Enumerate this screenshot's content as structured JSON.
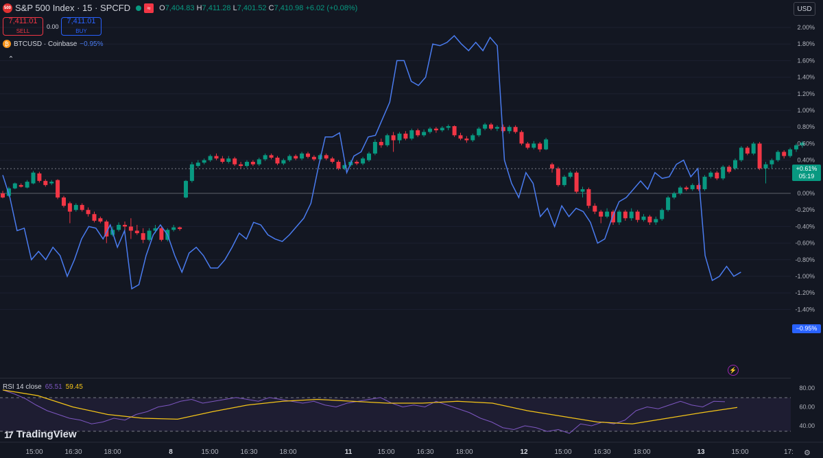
{
  "header": {
    "badge": "500",
    "title": "S&P 500 Index · 15 · SPCFD",
    "icon_glyph": "≈",
    "ohlc": {
      "o": "7,404.83",
      "h": "7,411.28",
      "l": "7,401.52",
      "c": "7,410.98",
      "change": "+6.02 (+0.08%)"
    }
  },
  "trade": {
    "sell_price": "7,411.01",
    "sell_label": "SELL",
    "spread": "0.00",
    "buy_price": "7,411.01",
    "buy_label": "BUY"
  },
  "compare": {
    "icon": "₿",
    "symbol": "BTCUSD · Coinbase",
    "change": "−0.95%"
  },
  "currency_button": "USD",
  "price_tags": {
    "sp_change": "+0.61%",
    "sp_countdown": "05:19",
    "btc_change": "−0.95%"
  },
  "rsi": {
    "label": "RSI 14 close",
    "rsi_value": "65.51",
    "ma_value": "59.45"
  },
  "brand": "TradingView",
  "colors": {
    "up": "#089981",
    "down": "#f23645",
    "btc_line": "#4a7cf0",
    "rsi_line": "#7e57c2",
    "rsi_ma": "#f5c518"
  },
  "chart_data": {
    "type": "line",
    "y_axis": {
      "ticks": [
        "2.00%",
        "1.80%",
        "1.60%",
        "1.40%",
        "1.20%",
        "1.00%",
        "0.80%",
        "0.60%",
        "0.40%",
        "0.20%",
        "0.00%",
        "-0.20%",
        "-0.40%",
        "-0.60%",
        "-0.80%",
        "-1.00%",
        "-1.20%",
        "-1.40%"
      ],
      "range": [
        -1.45,
        2.1
      ],
      "unit": "%"
    },
    "x_axis": {
      "ticks": [
        "15:00",
        "16:30",
        "18:00",
        "8",
        "15:00",
        "16:30",
        "18:00",
        "11",
        "15:00",
        "16:30",
        "18:00",
        "12",
        "15:00",
        "16:30",
        "18:00",
        "13",
        "15:00",
        "17:"
      ]
    },
    "rsi_axis": {
      "ticks": [
        "80.00",
        "60.00",
        "40.00"
      ],
      "range": [
        30,
        85
      ],
      "band": [
        30,
        70
      ]
    },
    "sp500_candles": [
      [
        0.0,
        -0.05,
        0.03,
        -0.06
      ],
      [
        -0.03,
        0.06,
        0.08,
        -0.04
      ],
      [
        0.06,
        0.12,
        0.13,
        0.05
      ],
      [
        0.1,
        0.08,
        0.12,
        0.07
      ],
      [
        0.07,
        0.14,
        0.16,
        0.06
      ],
      [
        0.12,
        0.25,
        0.27,
        0.11
      ],
      [
        0.24,
        0.15,
        0.26,
        0.13
      ],
      [
        0.15,
        0.1,
        0.17,
        0.08
      ],
      [
        0.12,
        0.14,
        0.16,
        0.1
      ],
      [
        0.16,
        -0.05,
        0.17,
        -0.07
      ],
      [
        -0.05,
        -0.15,
        -0.03,
        -0.17
      ],
      [
        -0.12,
        -0.22,
        -0.1,
        -0.36
      ],
      [
        -0.2,
        -0.14,
        -0.12,
        -0.22
      ],
      [
        -0.14,
        -0.2,
        -0.12,
        -0.22
      ],
      [
        -0.2,
        -0.25,
        -0.17,
        -0.28
      ],
      [
        -0.25,
        -0.33,
        -0.22,
        -0.35
      ],
      [
        -0.3,
        -0.34,
        -0.28,
        -0.36
      ],
      [
        -0.34,
        -0.52,
        -0.32,
        -0.6
      ],
      [
        -0.5,
        -0.44,
        -0.4,
        -0.52
      ],
      [
        -0.44,
        -0.38,
        -0.35,
        -0.46
      ],
      [
        -0.38,
        -0.4,
        -0.34,
        -0.45
      ],
      [
        -0.4,
        -0.45,
        -0.3,
        -0.55
      ],
      [
        -0.45,
        -0.48,
        -0.38,
        -0.5
      ],
      [
        -0.48,
        -0.56,
        -0.42,
        -0.6
      ],
      [
        -0.56,
        -0.45,
        -0.42,
        -0.58
      ],
      [
        -0.45,
        -0.42,
        -0.38,
        -0.48
      ],
      [
        -0.42,
        -0.56,
        -0.4,
        -0.58
      ],
      [
        -0.56,
        -0.44,
        -0.42,
        -0.58
      ],
      [
        -0.44,
        -0.41,
        -0.38,
        -0.46
      ],
      [
        -0.41,
        -0.43,
        -0.4,
        -0.45
      ],
      [
        -0.05,
        0.15,
        0.16,
        -0.06
      ],
      [
        0.15,
        0.35,
        0.38,
        0.13
      ],
      [
        0.33,
        0.37,
        0.4,
        0.31
      ],
      [
        0.37,
        0.4,
        0.42,
        0.35
      ],
      [
        0.4,
        0.45,
        0.47,
        0.38
      ],
      [
        0.45,
        0.42,
        0.48,
        0.4
      ],
      [
        0.42,
        0.38,
        0.45,
        0.36
      ],
      [
        0.38,
        0.42,
        0.45,
        0.36
      ],
      [
        0.42,
        0.35,
        0.44,
        0.33
      ],
      [
        0.35,
        0.33,
        0.38,
        0.3
      ],
      [
        0.33,
        0.38,
        0.4,
        0.31
      ],
      [
        0.38,
        0.35,
        0.4,
        0.33
      ],
      [
        0.35,
        0.41,
        0.43,
        0.33
      ],
      [
        0.41,
        0.46,
        0.48,
        0.39
      ],
      [
        0.46,
        0.43,
        0.48,
        0.41
      ],
      [
        0.43,
        0.36,
        0.45,
        0.34
      ],
      [
        0.36,
        0.4,
        0.42,
        0.34
      ],
      [
        0.4,
        0.45,
        0.47,
        0.38
      ],
      [
        0.45,
        0.42,
        0.47,
        0.4
      ],
      [
        0.42,
        0.48,
        0.5,
        0.4
      ],
      [
        0.48,
        0.44,
        0.5,
        0.42
      ],
      [
        0.44,
        0.41,
        0.46,
        0.39
      ],
      [
        0.41,
        0.46,
        0.48,
        0.39
      ],
      [
        0.46,
        0.42,
        0.48,
        0.4
      ],
      [
        0.42,
        0.38,
        0.44,
        0.36
      ],
      [
        0.38,
        0.3,
        0.4,
        0.28
      ],
      [
        0.3,
        0.34,
        0.36,
        0.28
      ],
      [
        0.34,
        0.38,
        0.4,
        0.32
      ],
      [
        0.38,
        0.36,
        0.4,
        0.34
      ],
      [
        0.36,
        0.42,
        0.44,
        0.34
      ],
      [
        0.4,
        0.48,
        0.5,
        0.38
      ],
      [
        0.48,
        0.62,
        0.65,
        0.46
      ],
      [
        0.62,
        0.58,
        0.66,
        0.55
      ],
      [
        0.58,
        0.7,
        0.72,
        0.56
      ],
      [
        0.7,
        0.64,
        0.74,
        0.5
      ],
      [
        0.64,
        0.72,
        0.74,
        0.6
      ],
      [
        0.72,
        0.66,
        0.75,
        0.64
      ],
      [
        0.66,
        0.76,
        0.78,
        0.64
      ],
      [
        0.76,
        0.7,
        0.78,
        0.68
      ],
      [
        0.7,
        0.74,
        0.77,
        0.68
      ],
      [
        0.74,
        0.78,
        0.8,
        0.72
      ],
      [
        0.78,
        0.76,
        0.8,
        0.73
      ],
      [
        0.76,
        0.79,
        0.81,
        0.74
      ],
      [
        0.79,
        0.81,
        0.83,
        0.76
      ],
      [
        0.81,
        0.7,
        0.82,
        0.68
      ],
      [
        0.7,
        0.66,
        0.73,
        0.64
      ],
      [
        0.66,
        0.64,
        0.69,
        0.61
      ],
      [
        0.64,
        0.7,
        0.72,
        0.62
      ],
      [
        0.7,
        0.78,
        0.8,
        0.68
      ],
      [
        0.78,
        0.83,
        0.85,
        0.76
      ],
      [
        0.83,
        0.78,
        0.85,
        0.76
      ],
      [
        0.78,
        0.8,
        0.82,
        0.75
      ],
      [
        0.8,
        0.75,
        0.83,
        0.73
      ],
      [
        0.75,
        0.8,
        0.82,
        0.72
      ],
      [
        0.8,
        0.74,
        0.82,
        0.72
      ],
      [
        0.74,
        0.6,
        0.76,
        0.58
      ],
      [
        0.6,
        0.55,
        0.62,
        0.53
      ],
      [
        0.55,
        0.6,
        0.63,
        0.53
      ],
      [
        0.6,
        0.53,
        0.62,
        0.5
      ],
      [
        0.53,
        0.65,
        0.67,
        0.52
      ],
      [
        0.35,
        0.3,
        0.37,
        0.25
      ],
      [
        0.3,
        0.1,
        0.32,
        0.08
      ],
      [
        0.1,
        0.2,
        0.22,
        0.08
      ],
      [
        0.2,
        0.25,
        0.27,
        0.18
      ],
      [
        0.25,
        0.02,
        0.27,
        0.0
      ],
      [
        0.02,
        0.05,
        0.08,
        -0.05
      ],
      [
        0.05,
        -0.15,
        0.07,
        -0.18
      ],
      [
        -0.15,
        -0.22,
        -0.12,
        -0.25
      ],
      [
        -0.22,
        -0.28,
        -0.2,
        -0.36
      ],
      [
        -0.28,
        -0.22,
        -0.18,
        -0.3
      ],
      [
        -0.22,
        -0.35,
        -0.2,
        -0.38
      ],
      [
        -0.35,
        -0.22,
        -0.2,
        -0.38
      ],
      [
        -0.22,
        -0.3,
        -0.2,
        -0.33
      ],
      [
        -0.3,
        -0.22,
        -0.18,
        -0.33
      ],
      [
        -0.22,
        -0.32,
        -0.2,
        -0.35
      ],
      [
        -0.32,
        -0.28,
        -0.25,
        -0.34
      ],
      [
        -0.28,
        -0.35,
        -0.26,
        -0.38
      ],
      [
        -0.35,
        -0.31,
        -0.28,
        -0.38
      ],
      [
        -0.31,
        -0.2,
        -0.18,
        -0.33
      ],
      [
        -0.2,
        -0.05,
        -0.03,
        -0.22
      ],
      [
        -0.05,
        0.0,
        0.02,
        -0.07
      ],
      [
        0.0,
        0.07,
        0.09,
        -0.02
      ],
      [
        0.07,
        0.05,
        0.09,
        0.03
      ],
      [
        0.05,
        0.1,
        0.12,
        0.03
      ],
      [
        0.1,
        0.05,
        0.12,
        0.03
      ],
      [
        0.05,
        0.2,
        0.22,
        0.03
      ],
      [
        0.2,
        0.25,
        0.27,
        0.18
      ],
      [
        0.25,
        0.18,
        0.27,
        0.16
      ],
      [
        0.18,
        0.32,
        0.34,
        0.16
      ],
      [
        0.32,
        0.26,
        0.34,
        0.24
      ],
      [
        0.3,
        0.4,
        0.42,
        0.28
      ],
      [
        0.4,
        0.55,
        0.57,
        0.38
      ],
      [
        0.55,
        0.48,
        0.57,
        0.46
      ],
      [
        0.48,
        0.6,
        0.62,
        0.46
      ],
      [
        0.6,
        0.3,
        0.62,
        0.28
      ],
      [
        0.3,
        0.35,
        0.38,
        0.12
      ],
      [
        0.35,
        0.4,
        0.42,
        0.3
      ],
      [
        0.4,
        0.5,
        0.52,
        0.38
      ],
      [
        0.5,
        0.45,
        0.52,
        0.42
      ],
      [
        0.45,
        0.53,
        0.55,
        0.43
      ],
      [
        0.53,
        0.58,
        0.6,
        0.5
      ],
      [
        0.58,
        0.61,
        0.63,
        0.55
      ]
    ],
    "btc_line": [
      [
        0,
        0.22
      ],
      [
        1,
        -0.05
      ],
      [
        2,
        -0.45
      ],
      [
        3,
        -0.42
      ],
      [
        4,
        -0.8
      ],
      [
        5,
        -0.7
      ],
      [
        6,
        -0.8
      ],
      [
        7,
        -0.65
      ],
      [
        8,
        -0.75
      ],
      [
        9,
        -1.0
      ],
      [
        10,
        -0.8
      ],
      [
        11,
        -0.55
      ],
      [
        12,
        -0.4
      ],
      [
        13,
        -0.42
      ],
      [
        14,
        -0.55
      ],
      [
        15,
        -0.38
      ],
      [
        16,
        -0.65
      ],
      [
        17,
        -0.45
      ],
      [
        18,
        -1.15
      ],
      [
        19,
        -1.1
      ],
      [
        20,
        -0.75
      ],
      [
        21,
        -0.5
      ],
      [
        22,
        -0.38
      ],
      [
        23,
        -0.5
      ],
      [
        24,
        -0.75
      ],
      [
        25,
        -0.95
      ],
      [
        26,
        -0.72
      ],
      [
        27,
        -0.65
      ],
      [
        28,
        -0.75
      ],
      [
        29,
        -0.9
      ],
      [
        30,
        -0.9
      ],
      [
        31,
        -0.8
      ],
      [
        32,
        -0.65
      ],
      [
        33,
        -0.48
      ],
      [
        34,
        -0.55
      ],
      [
        35,
        -0.35
      ],
      [
        36,
        -0.38
      ],
      [
        37,
        -0.5
      ],
      [
        38,
        -0.55
      ],
      [
        39,
        -0.58
      ],
      [
        40,
        -0.5
      ],
      [
        41,
        -0.4
      ],
      [
        42,
        -0.3
      ],
      [
        43,
        -0.12
      ],
      [
        44,
        0.3
      ],
      [
        45,
        0.68
      ],
      [
        46,
        0.68
      ],
      [
        47,
        0.73
      ],
      [
        48,
        0.25
      ],
      [
        49,
        0.45
      ],
      [
        50,
        0.5
      ],
      [
        51,
        0.68
      ],
      [
        52,
        0.7
      ],
      [
        53,
        0.9
      ],
      [
        54,
        1.1
      ],
      [
        55,
        1.6
      ],
      [
        56,
        1.6
      ],
      [
        57,
        1.35
      ],
      [
        58,
        1.3
      ],
      [
        59,
        1.4
      ],
      [
        60,
        1.8
      ],
      [
        61,
        1.78
      ],
      [
        62,
        1.82
      ],
      [
        63,
        1.9
      ],
      [
        64,
        1.8
      ],
      [
        65,
        1.72
      ],
      [
        66,
        1.82
      ],
      [
        67,
        1.72
      ],
      [
        68,
        1.88
      ],
      [
        69,
        1.78
      ],
      [
        70,
        0.4
      ],
      [
        71,
        0.12
      ],
      [
        72,
        -0.05
      ],
      [
        73,
        0.25
      ],
      [
        74,
        0.12
      ],
      [
        75,
        -0.28
      ],
      [
        76,
        -0.18
      ],
      [
        77,
        -0.4
      ],
      [
        78,
        -0.15
      ],
      [
        79,
        -0.28
      ],
      [
        80,
        -0.18
      ],
      [
        81,
        -0.22
      ],
      [
        82,
        -0.35
      ],
      [
        83,
        -0.6
      ],
      [
        84,
        -0.55
      ],
      [
        85,
        -0.3
      ],
      [
        86,
        -0.1
      ],
      [
        87,
        -0.05
      ],
      [
        88,
        0.05
      ],
      [
        89,
        0.15
      ],
      [
        90,
        0.05
      ],
      [
        91,
        0.25
      ],
      [
        92,
        0.18
      ],
      [
        93,
        0.2
      ],
      [
        94,
        0.35
      ],
      [
        95,
        0.4
      ],
      [
        96,
        0.2
      ],
      [
        97,
        0.3
      ],
      [
        98,
        -0.75
      ],
      [
        99,
        -1.05
      ],
      [
        100,
        -1.0
      ],
      [
        101,
        -0.88
      ],
      [
        102,
        -1.0
      ],
      [
        103,
        -0.95
      ]
    ],
    "rsi_line": [
      [
        0,
        78
      ],
      [
        2,
        74
      ],
      [
        4,
        69
      ],
      [
        6,
        62
      ],
      [
        8,
        56
      ],
      [
        10,
        52
      ],
      [
        12,
        48
      ],
      [
        14,
        46
      ],
      [
        16,
        42
      ],
      [
        18,
        44
      ],
      [
        20,
        48
      ],
      [
        22,
        46
      ],
      [
        24,
        52
      ],
      [
        26,
        55
      ],
      [
        28,
        60
      ],
      [
        30,
        62
      ],
      [
        32,
        66
      ],
      [
        34,
        68
      ],
      [
        36,
        64
      ],
      [
        38,
        66
      ],
      [
        40,
        68
      ],
      [
        42,
        70
      ],
      [
        44,
        68
      ],
      [
        46,
        66
      ],
      [
        48,
        70
      ],
      [
        50,
        68
      ],
      [
        52,
        66
      ],
      [
        54,
        64
      ],
      [
        56,
        66
      ],
      [
        58,
        62
      ],
      [
        60,
        60
      ],
      [
        62,
        64
      ],
      [
        64,
        66
      ],
      [
        66,
        68
      ],
      [
        68,
        70
      ],
      [
        70,
        64
      ],
      [
        72,
        60
      ],
      [
        74,
        62
      ],
      [
        76,
        60
      ],
      [
        78,
        66
      ],
      [
        80,
        62
      ],
      [
        82,
        58
      ],
      [
        84,
        54
      ],
      [
        86,
        48
      ],
      [
        88,
        44
      ],
      [
        90,
        38
      ],
      [
        92,
        36
      ],
      [
        94,
        40
      ],
      [
        96,
        38
      ],
      [
        98,
        34
      ],
      [
        100,
        36
      ],
      [
        102,
        32
      ],
      [
        104,
        42
      ],
      [
        106,
        40
      ],
      [
        108,
        44
      ],
      [
        110,
        42
      ],
      [
        112,
        46
      ],
      [
        114,
        56
      ],
      [
        116,
        60
      ],
      [
        118,
        58
      ],
      [
        120,
        62
      ],
      [
        122,
        66
      ],
      [
        124,
        62
      ],
      [
        126,
        60
      ],
      [
        128,
        66
      ],
      [
        130,
        65.51
      ]
    ],
    "rsi_ma_line": [
      [
        0,
        78
      ],
      [
        10,
        72
      ],
      [
        20,
        60
      ],
      [
        30,
        52
      ],
      [
        40,
        48
      ],
      [
        50,
        47
      ],
      [
        60,
        55
      ],
      [
        70,
        62
      ],
      [
        80,
        66
      ],
      [
        90,
        68
      ],
      [
        100,
        66
      ],
      [
        110,
        64
      ],
      [
        120,
        64
      ],
      [
        130,
        66
      ],
      [
        140,
        64
      ],
      [
        150,
        56
      ],
      [
        160,
        50
      ],
      [
        170,
        44
      ],
      [
        180,
        42
      ],
      [
        190,
        48
      ],
      [
        200,
        54
      ],
      [
        210,
        59.45
      ]
    ]
  }
}
